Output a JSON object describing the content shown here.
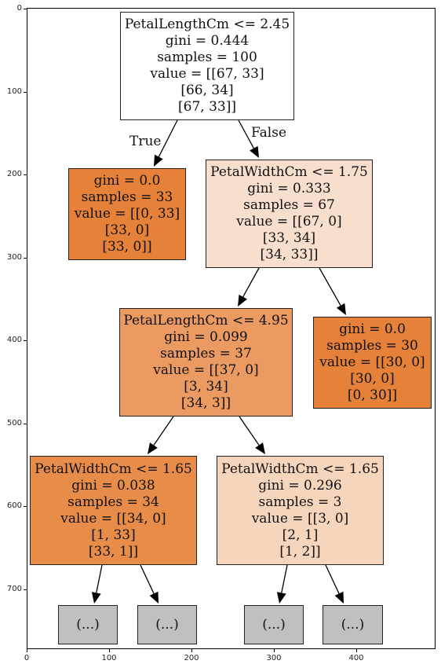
{
  "tree": {
    "nodes": [
      {
        "id": "root",
        "lines": [
          "PetalLengthCm <= 2.45",
          "gini = 0.444",
          "samples = 100",
          "value = [[67, 33]",
          "[66, 34]",
          "[67, 33]]"
        ],
        "fill": "#ffffff"
      },
      {
        "id": "n1",
        "lines": [
          "gini = 0.0",
          "samples = 33",
          "value = [[0, 33]",
          "[33, 0]",
          "[33, 0]]"
        ],
        "fill": "#e58139"
      },
      {
        "id": "n2",
        "lines": [
          "PetalWidthCm <= 1.75",
          "gini = 0.333",
          "samples = 67",
          "value = [[67, 0]",
          "[33, 34]",
          "[34, 33]]"
        ],
        "fill": "#f8dfcd"
      },
      {
        "id": "n3",
        "lines": [
          "PetalLengthCm <= 4.95",
          "gini = 0.099",
          "samples = 37",
          "value = [[37, 0]",
          "[3, 34]",
          "[34, 3]]"
        ],
        "fill": "#eb9a61"
      },
      {
        "id": "n4",
        "lines": [
          "gini = 0.0",
          "samples = 30",
          "value = [[30, 0]",
          "[30, 0]",
          "[0, 30]]"
        ],
        "fill": "#e58139"
      },
      {
        "id": "n5",
        "lines": [
          "PetalWidthCm <= 1.65",
          "gini = 0.038",
          "samples = 34",
          "value = [[34, 0]",
          "[1, 33]",
          "[33, 1]]"
        ],
        "fill": "#e88c4a"
      },
      {
        "id": "n6",
        "lines": [
          "PetalWidthCm <= 1.65",
          "gini = 0.296",
          "samples = 3",
          "value = [[3, 0]",
          "[2, 1]",
          "[1, 2]]"
        ],
        "fill": "#f6d5bd"
      },
      {
        "id": "t1",
        "lines": [
          "(...)"
        ],
        "fill": "#c0c0c0"
      },
      {
        "id": "t2",
        "lines": [
          "(...)"
        ],
        "fill": "#c0c0c0"
      },
      {
        "id": "t3",
        "lines": [
          "(...)"
        ],
        "fill": "#c0c0c0"
      },
      {
        "id": "t4",
        "lines": [
          "(...)"
        ],
        "fill": "#c0c0c0"
      }
    ],
    "edges": [
      {
        "from": "root",
        "to": "n1"
      },
      {
        "from": "root",
        "to": "n2"
      },
      {
        "from": "n2",
        "to": "n3"
      },
      {
        "from": "n2",
        "to": "n4"
      },
      {
        "from": "n3",
        "to": "n5"
      },
      {
        "from": "n3",
        "to": "n6"
      },
      {
        "from": "n5",
        "to": "t1"
      },
      {
        "from": "n5",
        "to": "t2"
      },
      {
        "from": "n6",
        "to": "t3"
      },
      {
        "from": "n6",
        "to": "t4"
      }
    ],
    "edge_labels": {
      "true_label": "True",
      "false_label": "False"
    }
  },
  "axes": {
    "yticks": [
      "0",
      "100",
      "200",
      "300",
      "400",
      "500",
      "600",
      "700"
    ],
    "xticks": [
      "0",
      "100",
      "200",
      "300",
      "400"
    ]
  }
}
